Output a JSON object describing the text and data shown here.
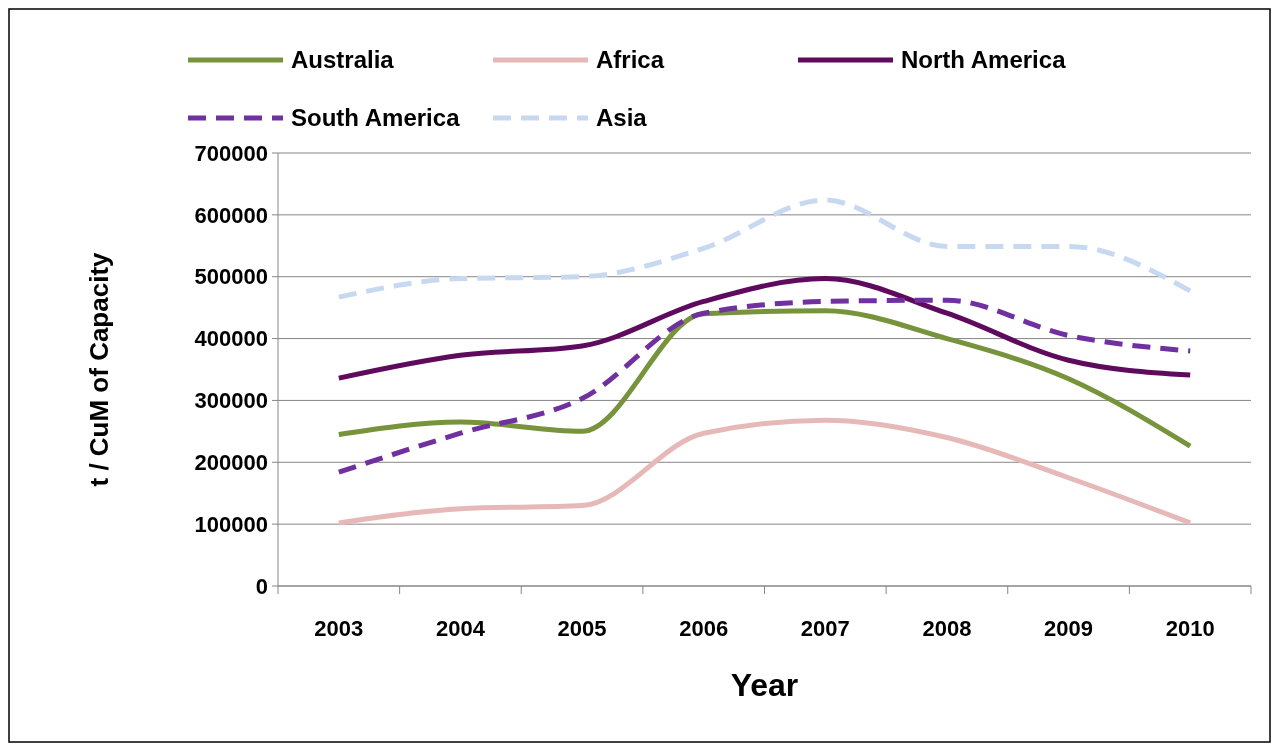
{
  "chart_data": {
    "type": "line",
    "xlabel": "Year",
    "ylabel": "t / CuM of Capacity",
    "categories": [
      "2003",
      "2004",
      "2005",
      "2006",
      "2007",
      "2008",
      "2009",
      "2010"
    ],
    "series": [
      {
        "name": "Australia",
        "color": "#77933c",
        "line_style": "solid",
        "values": [
          245000,
          265000,
          250000,
          440000,
          445000,
          400000,
          335000,
          226000
        ]
      },
      {
        "name": "Africa",
        "color": "#e6b9b8",
        "line_style": "solid",
        "values": [
          102000,
          125000,
          130000,
          247000,
          268000,
          240000,
          175000,
          102000
        ]
      },
      {
        "name": "North America",
        "color": "#5e0b5e",
        "line_style": "solid",
        "values": [
          336000,
          373000,
          388000,
          460000,
          497000,
          441000,
          365000,
          341000
        ]
      },
      {
        "name": "South America",
        "color": "#7030a0",
        "line_style": "dashed",
        "values": [
          184000,
          247000,
          303000,
          441000,
          460000,
          462000,
          405000,
          380000
        ]
      },
      {
        "name": "Asia",
        "color": "#c6d9f1",
        "line_style": "dashed",
        "values": [
          467000,
          497000,
          500000,
          546000,
          624000,
          549000,
          549000,
          477000
        ]
      }
    ],
    "ylim": [
      0,
      700000
    ],
    "yticks": [
      0,
      100000,
      200000,
      300000,
      400000,
      500000,
      600000,
      700000
    ],
    "grid": "y",
    "legend": "top",
    "marker": "none"
  }
}
